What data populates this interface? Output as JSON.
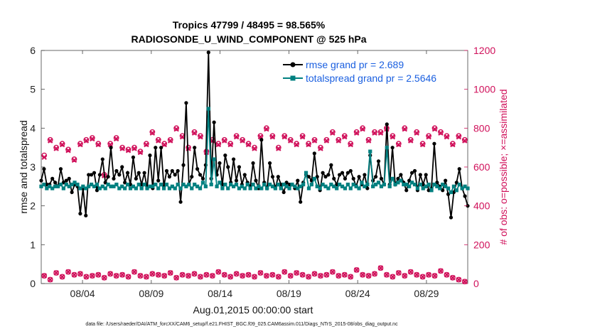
{
  "chart_data": {
    "type": "line",
    "title_line1": "Tropics 47799 / 48495 = 98.565%",
    "title_line2": "RADIOSONDE_U_WIND_COMPONENT @ 525 hPa",
    "xlabel": "Aug.01,2015 00:00:00 start",
    "ylabel_left": "rmse and totalspread",
    "ylabel_right": "# of obs: o=possible; ×=assimilated",
    "footnote": "data file: /Users/raeder/DAI/ATM_forcXX/CAM6_setup/f.e21.FHIST_BGC.f09_025.CAM6assim.011/Diags_NTrS_2015-08/obs_diag_output.nc",
    "x_range": [
      1.0,
      32.0
    ],
    "x_ticks": [
      {
        "value": 4,
        "label": "08/04"
      },
      {
        "value": 9,
        "label": "08/09"
      },
      {
        "value": 14,
        "label": "08/14"
      },
      {
        "value": 19,
        "label": "08/19"
      },
      {
        "value": 24,
        "label": "08/24"
      },
      {
        "value": 29,
        "label": "08/29"
      }
    ],
    "ylim_left": [
      0,
      6
    ],
    "yticks_left": [
      "0",
      "1",
      "2",
      "3",
      "4",
      "5",
      "6"
    ],
    "ylim_right": [
      0,
      1200
    ],
    "yticks_right": [
      "0",
      "200",
      "400",
      "600",
      "800",
      "1000",
      "1200"
    ],
    "legend": [
      {
        "label": "rmse grand pr = 2.689",
        "color": "#000000"
      },
      {
        "label": "totalspread grand pr = 2.5646",
        "color": "#008080"
      }
    ],
    "colors": {
      "rmse": "#000000",
      "spread": "#008080",
      "obs": "#d0105a",
      "legend_text": "#1a5fe0"
    },
    "series": [
      {
        "name": "rmse",
        "values": [
          2.65,
          2.95,
          2.55,
          2.55,
          2.7,
          2.6,
          2.5,
          2.95,
          2.6,
          2.65,
          2.7,
          2.35,
          2.55,
          2.5,
          1.8,
          2.45,
          1.75,
          2.8,
          2.8,
          2.85,
          2.4,
          2.8,
          3.2,
          2.6,
          2.75,
          3.5,
          2.7,
          2.9,
          2.8,
          3.0,
          2.6,
          2.85,
          2.55,
          3.25,
          2.7,
          2.85,
          2.55,
          2.85,
          2.45,
          3.3,
          2.45,
          3.5,
          2.65,
          3.5,
          2.5,
          2.9,
          2.75,
          2.9,
          2.8,
          2.9,
          2.1,
          3.05,
          4.65,
          2.55,
          2.75,
          3.5,
          2.95,
          2.8,
          2.7,
          3.05,
          5.95,
          2.7,
          4.15,
          2.8,
          3.1,
          2.55,
          3.3,
          3.0,
          2.6,
          3.2,
          2.65,
          3.0,
          2.55,
          2.8,
          2.6,
          2.5,
          3.1,
          2.65,
          2.45,
          3.7,
          2.6,
          2.45,
          3.1,
          2.75,
          2.45,
          2.75,
          2.55,
          2.35,
          2.6,
          2.55,
          2.55,
          2.45,
          2.65,
          2.1,
          2.6,
          2.8,
          2.75,
          2.65,
          3.35,
          2.75,
          2.4,
          2.85,
          2.75,
          2.8,
          3.05,
          2.7,
          2.55,
          2.8,
          2.85,
          2.7,
          2.85,
          2.9,
          2.7,
          2.5,
          2.75,
          2.55,
          2.8,
          2.45,
          3.3,
          2.65,
          2.75,
          3.15,
          2.7,
          2.55,
          4.1,
          2.55,
          3.5,
          2.55,
          2.7,
          2.8,
          2.6,
          2.4,
          2.65,
          2.85,
          2.9,
          2.4,
          2.8,
          2.55,
          2.8,
          2.4,
          2.45,
          3.6,
          2.6,
          2.5,
          2.4,
          2.65,
          2.3,
          1.7,
          2.35,
          2.6,
          2.95,
          2.45,
          2.25,
          2.0
        ]
      },
      {
        "name": "totalspread",
        "values": [
          2.5,
          2.55,
          2.45,
          2.5,
          2.45,
          2.5,
          2.5,
          2.55,
          2.45,
          2.55,
          2.5,
          2.55,
          2.6,
          2.55,
          2.45,
          2.5,
          2.45,
          2.5,
          2.55,
          2.5,
          2.55,
          2.45,
          2.5,
          2.45,
          2.55,
          2.5,
          2.5,
          2.55,
          2.45,
          2.5,
          2.45,
          2.55,
          2.45,
          2.5,
          2.45,
          2.55,
          2.45,
          2.55,
          2.45,
          2.5,
          2.5,
          2.55,
          2.45,
          2.55,
          2.45,
          2.55,
          2.45,
          2.5,
          2.45,
          2.55,
          2.45,
          2.55,
          2.5,
          2.55,
          2.45,
          2.55,
          2.5,
          2.45,
          2.6,
          2.5,
          4.5,
          2.55,
          3.2,
          2.5,
          2.6,
          2.45,
          2.55,
          2.45,
          2.55,
          2.5,
          2.55,
          2.45,
          2.5,
          2.45,
          2.55,
          2.45,
          2.55,
          2.45,
          2.5,
          2.45,
          2.55,
          2.45,
          2.55,
          2.5,
          2.45,
          2.55,
          2.45,
          2.55,
          2.5,
          2.45,
          2.55,
          2.5,
          2.45,
          2.5,
          2.55,
          2.85,
          2.45,
          2.55,
          2.7,
          2.5,
          2.45,
          2.55,
          2.5,
          2.45,
          2.55,
          2.5,
          2.45,
          2.55,
          2.5,
          2.45,
          2.55,
          2.45,
          2.55,
          2.5,
          2.45,
          2.6,
          2.5,
          2.55,
          3.4,
          2.5,
          2.55,
          2.6,
          2.5,
          2.55,
          3.5,
          2.5,
          2.7,
          2.55,
          2.6,
          2.65,
          2.55,
          2.55,
          2.5,
          2.6,
          2.55,
          2.45,
          2.55,
          2.45,
          2.5,
          2.55,
          2.4,
          2.55,
          2.5,
          2.45,
          2.55,
          2.5,
          2.45,
          2.35,
          2.5,
          2.4,
          2.55,
          2.45,
          2.5,
          2.45
        ]
      }
    ],
    "obs_possible_top": [
      660,
      740,
      700,
      720,
      690,
      640,
      720,
      740,
      750,
      720,
      560,
      720,
      750,
      700,
      690,
      700,
      680,
      720,
      780,
      740,
      720,
      740,
      800,
      760,
      700,
      780,
      760,
      680,
      740,
      720,
      740,
      720,
      760,
      740,
      720,
      700,
      760,
      800,
      760,
      700,
      760,
      740,
      720,
      760,
      720,
      740,
      700,
      740,
      780,
      740,
      760,
      720,
      780,
      800,
      740,
      780,
      780,
      800,
      760,
      720,
      800,
      740,
      780,
      720,
      760,
      800,
      780,
      760,
      720,
      760,
      740
    ],
    "obs_assimilated_top": [
      650,
      735,
      695,
      715,
      685,
      635,
      715,
      735,
      745,
      715,
      555,
      715,
      745,
      695,
      685,
      695,
      675,
      715,
      775,
      735,
      715,
      735,
      795,
      755,
      695,
      775,
      755,
      675,
      735,
      715,
      735,
      715,
      755,
      735,
      715,
      695,
      755,
      795,
      755,
      695,
      755,
      735,
      715,
      755,
      715,
      735,
      695,
      735,
      775,
      735,
      755,
      715,
      775,
      795,
      735,
      775,
      775,
      795,
      755,
      715,
      795,
      735,
      775,
      715,
      755,
      795,
      775,
      755,
      715,
      755,
      735
    ],
    "obs_bottom": [
      40,
      20,
      55,
      35,
      60,
      45,
      50,
      35,
      40,
      45,
      30,
      50,
      40,
      45,
      35,
      60,
      40,
      35,
      50,
      45,
      40,
      55,
      30,
      45,
      40,
      50,
      35,
      45,
      40,
      60,
      45,
      35,
      50,
      40,
      45,
      35,
      55,
      40,
      45,
      35,
      60,
      40,
      55,
      45,
      35,
      50,
      40,
      45,
      60,
      40,
      45,
      35,
      70,
      45,
      40,
      50,
      80,
      45,
      35,
      55,
      40,
      60,
      45,
      35,
      45,
      40,
      65,
      45,
      30,
      20,
      10
    ]
  }
}
